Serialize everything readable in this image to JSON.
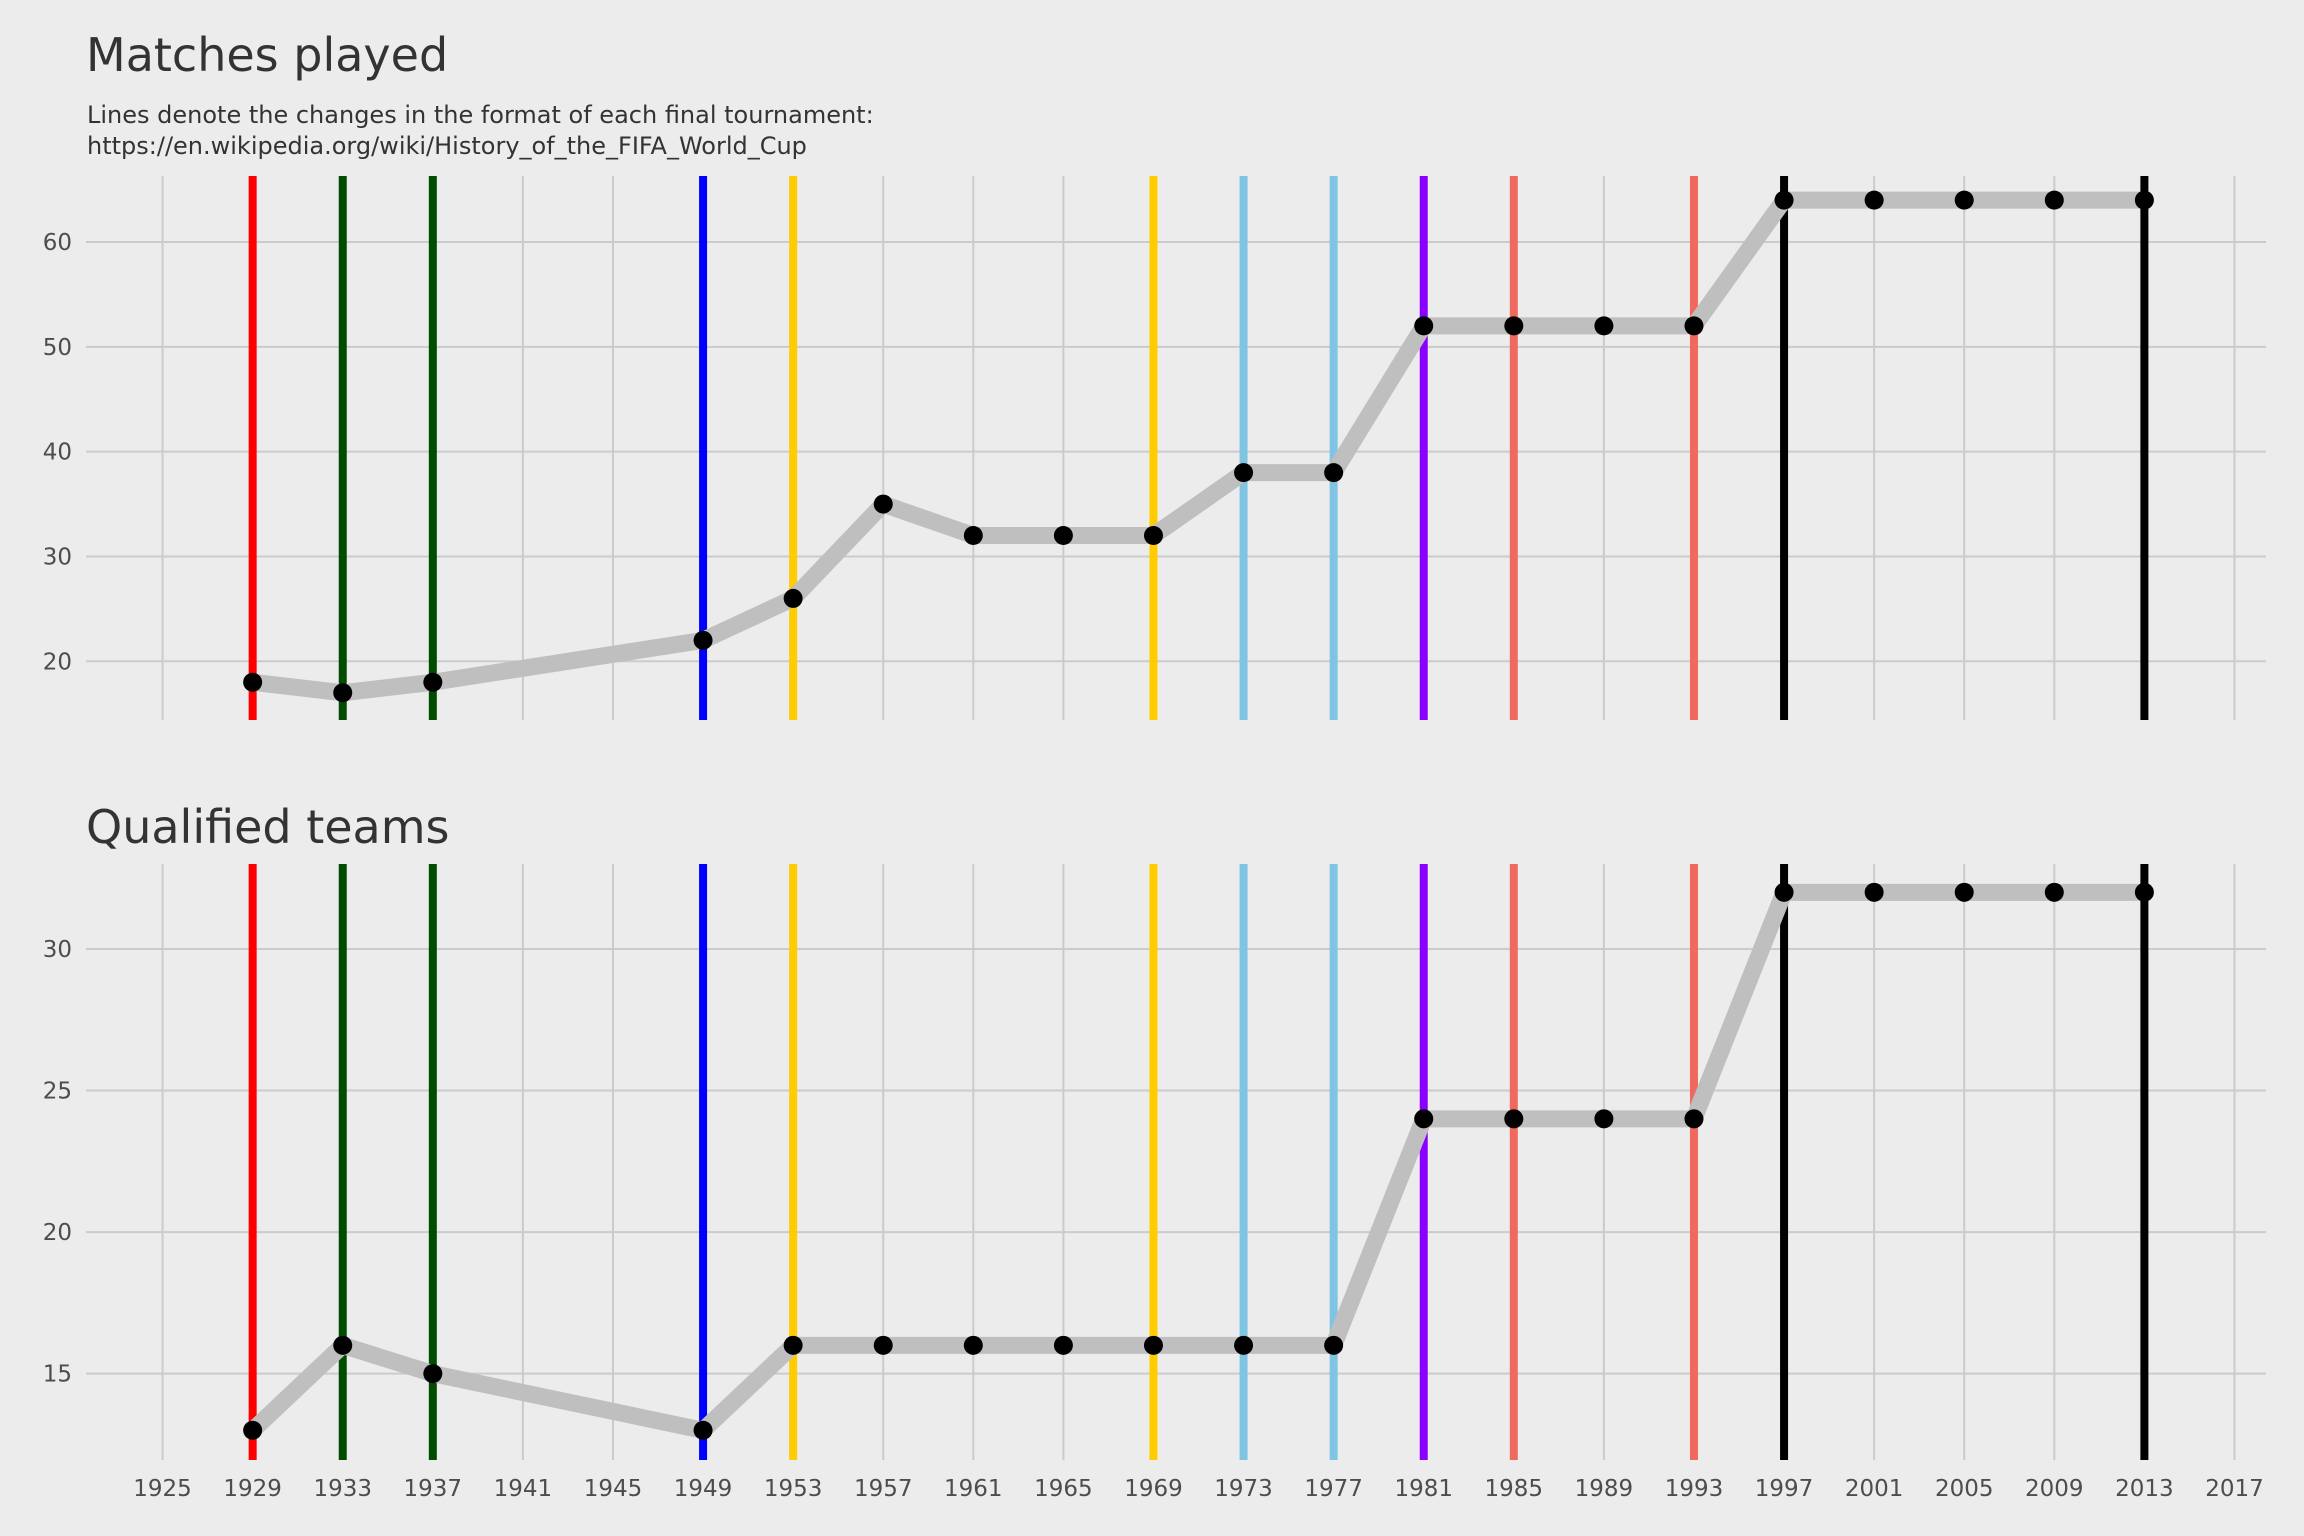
{
  "title": "Matches played",
  "subtitle_lines": [
    "Lines denote the changes in the format of each final tournament:",
    "https://en.wikipedia.org/wiki/History_of_the_FIFA_World_Cup"
  ],
  "colors": {
    "background": "#ececec",
    "grid": "#cbcbcb",
    "trend_line": "#bfbfbf",
    "points": "#000000"
  },
  "chart_data": [
    {
      "type": "line",
      "title": "Matches played",
      "x_ticks": [
        1925,
        1929,
        1933,
        1937,
        1941,
        1945,
        1949,
        1953,
        1957,
        1961,
        1965,
        1969,
        1973,
        1977,
        1981,
        1985,
        1989,
        1993,
        1997,
        2001,
        2005,
        2009,
        2013,
        2017
      ],
      "xlim": [
        1921.6,
        2018.4
      ],
      "y_ticks": [
        20,
        30,
        40,
        50,
        60
      ],
      "ylim": [
        14.4,
        66.3
      ],
      "x": [
        1929,
        1933,
        1937,
        1949,
        1953,
        1957,
        1961,
        1965,
        1969,
        1973,
        1977,
        1981,
        1985,
        1989,
        1993,
        1997,
        2001,
        2005,
        2009,
        2013
      ],
      "values": [
        18,
        17,
        18,
        22,
        26,
        35,
        32,
        32,
        32,
        38,
        38,
        52,
        52,
        52,
        52,
        64,
        64,
        64,
        64,
        64
      ],
      "format_change_lines": [
        {
          "x": 1929,
          "color": "#ff0000"
        },
        {
          "x": 1933,
          "color": "#004d00"
        },
        {
          "x": 1937,
          "color": "#004d00"
        },
        {
          "x": 1949,
          "color": "#0000ff"
        },
        {
          "x": 1953,
          "color": "#ffcc00"
        },
        {
          "x": 1969,
          "color": "#ffcc00"
        },
        {
          "x": 1973,
          "color": "#7fc4e3"
        },
        {
          "x": 1977,
          "color": "#7fc4e3"
        },
        {
          "x": 1981,
          "color": "#8a00ff"
        },
        {
          "x": 1985,
          "color": "#f0695e"
        },
        {
          "x": 1993,
          "color": "#f0695e"
        },
        {
          "x": 1997,
          "color": "#000000"
        },
        {
          "x": 2013,
          "color": "#000000"
        }
      ],
      "grid": true
    },
    {
      "type": "line",
      "title": "Qualified teams",
      "x_ticks": [
        1925,
        1929,
        1933,
        1937,
        1941,
        1945,
        1949,
        1953,
        1957,
        1961,
        1965,
        1969,
        1973,
        1977,
        1981,
        1985,
        1989,
        1993,
        1997,
        2001,
        2005,
        2009,
        2013,
        2017
      ],
      "xlim": [
        1921.6,
        2018.4
      ],
      "y_ticks": [
        15,
        20,
        25,
        30
      ],
      "ylim": [
        11.95,
        33.0
      ],
      "x": [
        1929,
        1933,
        1937,
        1949,
        1953,
        1957,
        1961,
        1965,
        1969,
        1973,
        1977,
        1981,
        1985,
        1989,
        1993,
        1997,
        2001,
        2005,
        2009,
        2013
      ],
      "values": [
        13,
        16,
        15,
        13,
        16,
        16,
        16,
        16,
        16,
        16,
        16,
        24,
        24,
        24,
        24,
        32,
        32,
        32,
        32,
        32
      ],
      "format_change_lines": [
        {
          "x": 1929,
          "color": "#ff0000"
        },
        {
          "x": 1933,
          "color": "#004d00"
        },
        {
          "x": 1937,
          "color": "#004d00"
        },
        {
          "x": 1949,
          "color": "#0000ff"
        },
        {
          "x": 1953,
          "color": "#ffcc00"
        },
        {
          "x": 1969,
          "color": "#ffcc00"
        },
        {
          "x": 1973,
          "color": "#7fc4e3"
        },
        {
          "x": 1977,
          "color": "#7fc4e3"
        },
        {
          "x": 1981,
          "color": "#8a00ff"
        },
        {
          "x": 1985,
          "color": "#f0695e"
        },
        {
          "x": 1993,
          "color": "#f0695e"
        },
        {
          "x": 1997,
          "color": "#000000"
        },
        {
          "x": 2013,
          "color": "#000000"
        }
      ],
      "grid": true
    }
  ]
}
